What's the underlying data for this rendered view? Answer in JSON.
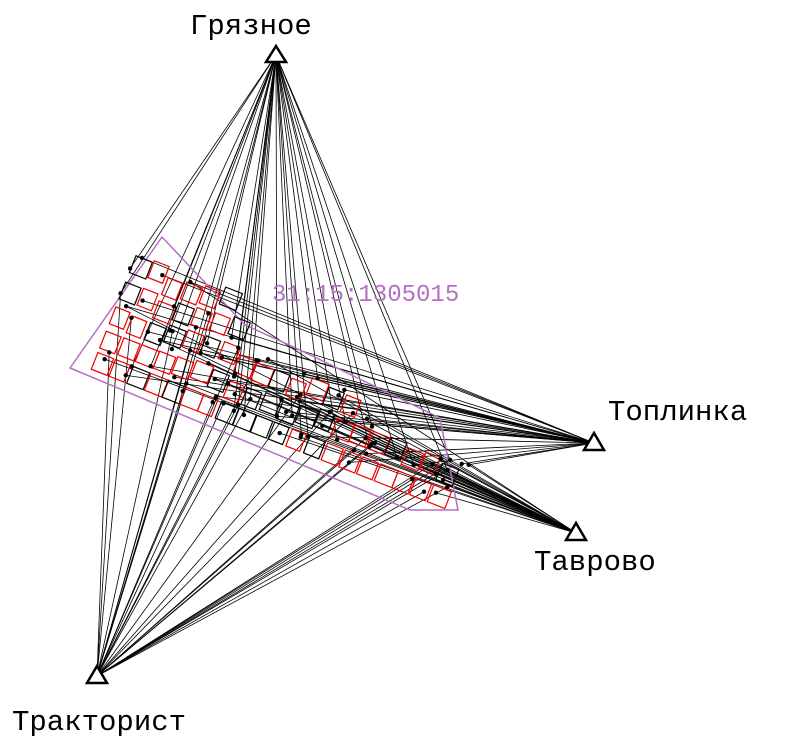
{
  "stations": [
    {
      "label": "Грязное"
    },
    {
      "label": "Топлинка"
    },
    {
      "label": "Таврово"
    },
    {
      "label": "Тракторист"
    }
  ],
  "parcel": {
    "label": "31:15:1305015"
  }
}
